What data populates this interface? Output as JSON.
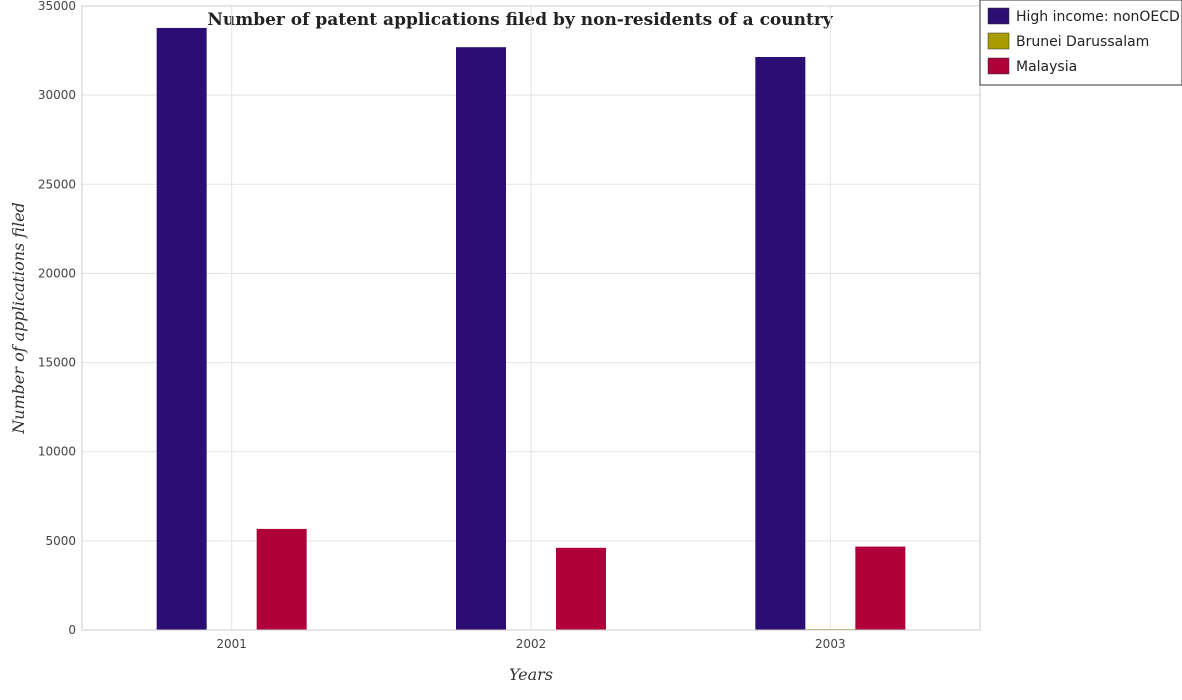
{
  "chart_data": {
    "type": "bar",
    "title": "Number of patent applications filed by non-residents of a country",
    "xlabel": "Years",
    "ylabel": "Number of applications filed",
    "categories": [
      "2001",
      "2002",
      "2003"
    ],
    "series": [
      {
        "name": "High income: nonOECD",
        "color": "#2b0e74",
        "values": [
          33770,
          32690,
          32140
        ]
      },
      {
        "name": "Brunei Darussalam",
        "color": "#a89b00",
        "values": [
          25,
          20,
          50
        ]
      },
      {
        "name": "Malaysia",
        "color": "#b0003a",
        "values": [
          5670,
          4610,
          4680
        ]
      }
    ],
    "ylim": [
      0,
      35000
    ],
    "yticks": [
      0,
      5000,
      10000,
      15000,
      20000,
      25000,
      30000,
      35000
    ],
    "ytick_labels": [
      "0",
      "5000",
      "10000",
      "15000",
      "20000",
      "25000",
      "30000",
      "35000"
    ],
    "grid": true,
    "legend_position": "top-right"
  }
}
